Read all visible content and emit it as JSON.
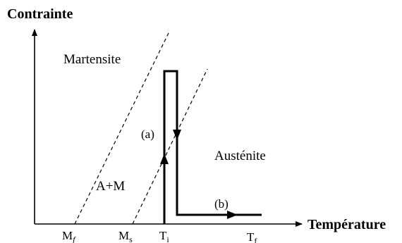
{
  "axes": {
    "y_label": "Contrainte",
    "x_label": "Température"
  },
  "regions": {
    "martensite": "Martensite",
    "austenite": "Austénite",
    "mixed": "A+M"
  },
  "paths": {
    "a": "(a)",
    "b": "(b)"
  },
  "x_ticks": {
    "mf": {
      "base": "M",
      "sub": "f"
    },
    "ms": {
      "base": "M",
      "sub": "s"
    },
    "ti": {
      "base": "T",
      "sub": "i"
    },
    "tf": {
      "base": "T",
      "sub": "f"
    }
  }
}
